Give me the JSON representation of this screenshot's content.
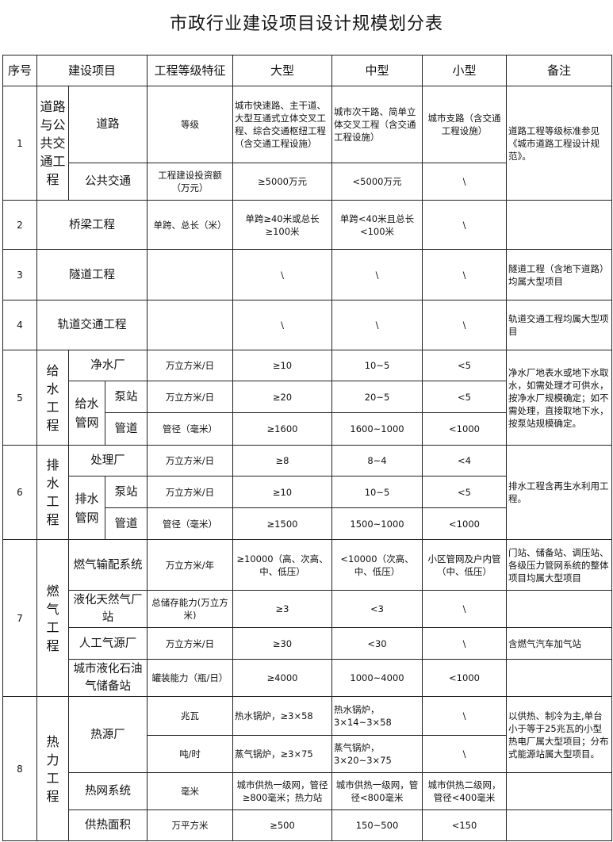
{
  "title": "市政行业建设项目设计规模划分表",
  "headers": {
    "no": "序号",
    "project": "建设项目",
    "feature": "工程等级特征",
    "large": "大型",
    "medium": "中型",
    "small": "小型",
    "note": "备注"
  },
  "r1": {
    "no": "1",
    "group": "道路与公共交通工程",
    "a": {
      "name": "道路",
      "feature": "等级",
      "large": "城市快速路、主干道、大型互通式立体交叉工程、综合交通枢纽工程（含交通工程设施）",
      "medium": "城市次干路、简单立体交叉工程（含交通工程设施）",
      "small": "城市支路（含交通工程设施）"
    },
    "b": {
      "name": "公共交通",
      "feature": "工程建设投资额（万元）",
      "large": "≥5000万元",
      "medium": "<5000万元",
      "small": "\\"
    },
    "note": "道路工程等级标准参见《城市道路工程设计规范》。"
  },
  "r2": {
    "no": "2",
    "name": "桥梁工程",
    "feature": "单跨、总长（米）",
    "large": "单跨≥40米或总长≥100米",
    "medium": "单跨<40米且总长<100米",
    "small": "\\",
    "note": ""
  },
  "r3": {
    "no": "3",
    "name": "隧道工程",
    "feature": "",
    "large": "\\",
    "medium": "\\",
    "small": "\\",
    "note": "隧道工程（含地下道路）均属大型项目"
  },
  "r4": {
    "no": "4",
    "name": "轨道交通工程",
    "feature": "",
    "large": "\\",
    "medium": "\\",
    "small": "\\",
    "note": "轨道交通工程均属大型项目"
  },
  "r5": {
    "no": "5",
    "group": "给水工程",
    "subgroup": "给水管网",
    "a": {
      "name": "净水厂",
      "feature": "万立方米/日",
      "large": "≥10",
      "medium": "10~5",
      "small": "<5"
    },
    "b": {
      "name": "泵站",
      "feature": "万立方米/日",
      "large": "≥20",
      "medium": "20~5",
      "small": "<5"
    },
    "c": {
      "name": "管道",
      "feature": "管径（毫米）",
      "large": "≥1600",
      "medium": "1600~1000",
      "small": "<1000"
    },
    "note": "净水厂地表水或地下水取水，如需处理才可供水，按净水厂规模确定；如不需处理，直接取地下水，按泵站规模确定。"
  },
  "r6": {
    "no": "6",
    "group": "排水工程",
    "subgroup": "排水管网",
    "a": {
      "name": "处理厂",
      "feature": "万立方米/日",
      "large": "≥8",
      "medium": "8~4",
      "small": "<4"
    },
    "b": {
      "name": "泵站",
      "feature": "万立方米/日",
      "large": "≥10",
      "medium": "10~5",
      "small": "<5"
    },
    "c": {
      "name": "管道",
      "feature": "管径（毫米）",
      "large": "≥1500",
      "medium": "1500~1000",
      "small": "<1000"
    },
    "note": "排水工程含再生水利用工程。"
  },
  "r7": {
    "no": "7",
    "group": "燃气工程",
    "a": {
      "name": "燃气输配系统",
      "feature": "万立方米/年",
      "large": "≥10000（高、次高、中、低压）",
      "medium": "<10000（次高、中、低压）",
      "small": "小区管网及户内管（中、低压）",
      "note": "门站、储备站、调压站、各级压力管网系统的整体项目均属大型项目"
    },
    "b": {
      "name": "液化天然气厂站",
      "feature": "总储存能力(万立方米)",
      "large": "≥3",
      "medium": "<3",
      "small": "\\",
      "note": ""
    },
    "c": {
      "name": "人工气源厂",
      "feature": "万立方米/日",
      "large": "≥30",
      "medium": "<30",
      "small": "\\",
      "note": "含燃气汽车加气站"
    },
    "d": {
      "name": "城市液化石油气储备站",
      "feature": "罐装能力（瓶/日）",
      "large": "≥4000",
      "medium": "1000~4000",
      "small": "<1000",
      "note": ""
    }
  },
  "r8": {
    "no": "8",
    "group": "热力工程",
    "heat_source": "热源厂",
    "a": {
      "feature": "兆瓦",
      "large": "热水锅炉，≥3×58",
      "medium": "热水锅炉，3×14~3×58",
      "small": "\\"
    },
    "b": {
      "feature": "吨/时",
      "large": "蒸气锅炉，≥3×75",
      "medium": "蒸气锅炉，3×20~3×75",
      "small": "\\"
    },
    "ab_note": "以供热、制冷为主,单台小于等于25兆瓦的小型热电厂属大型项目；分布式能源站属大型项目。",
    "c": {
      "name": "热网系统",
      "feature": "毫米",
      "large": "城市供热一级网，管径≥800毫米；热力站",
      "medium": "城市供热一级网，管径<800毫米",
      "small": "城市供热二级网，管径<400毫米",
      "note": ""
    },
    "d": {
      "name": "供热面积",
      "feature": "万平方米",
      "large": "≥500",
      "medium": "150~500",
      "small": "<150",
      "note": ""
    }
  }
}
